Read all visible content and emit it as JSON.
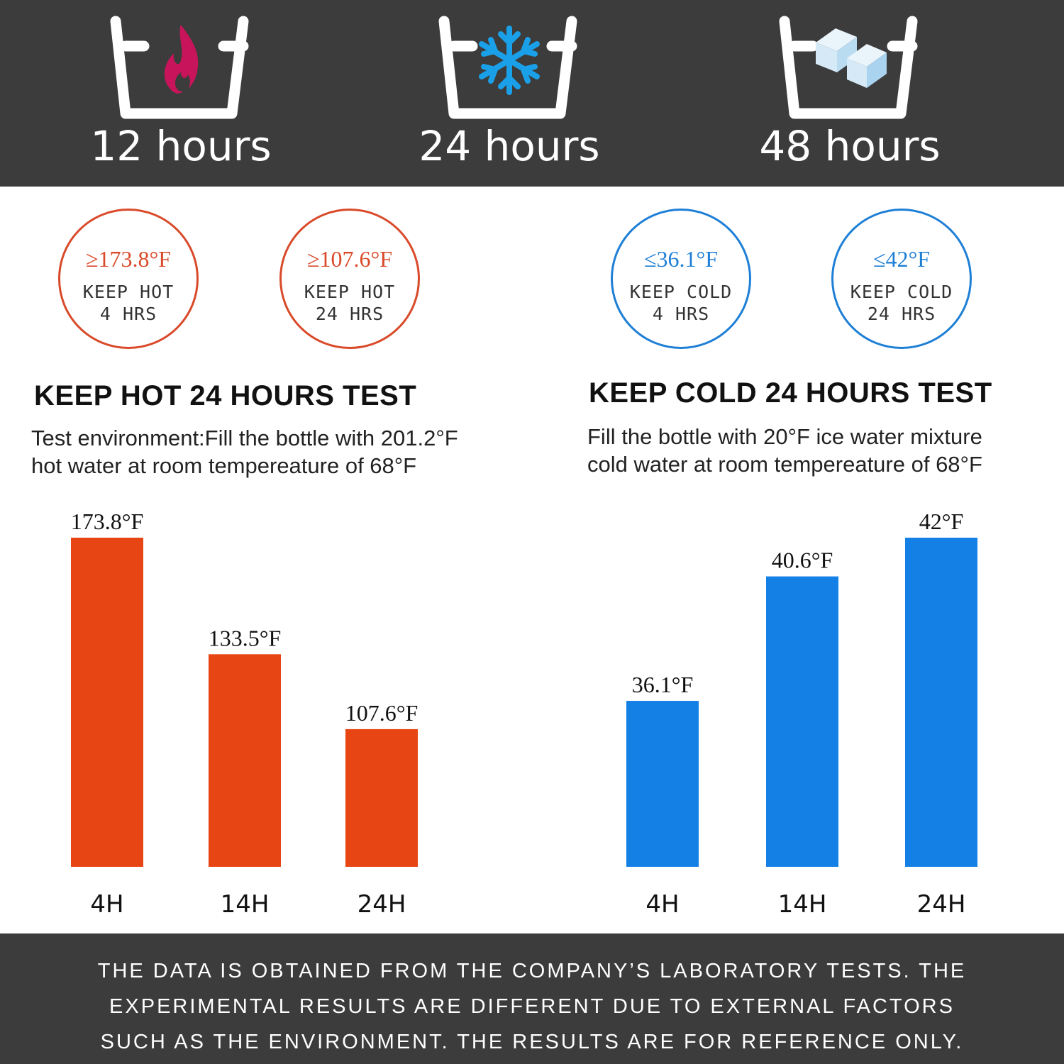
{
  "header": {
    "items": [
      {
        "icon": "flame-icon",
        "label": "12 hours",
        "color": "#c8145a"
      },
      {
        "icon": "snowflake-icon",
        "label": "24 hours",
        "color": "#1aa0e8"
      },
      {
        "icon": "ice-cubes-icon",
        "label": "48 hours",
        "color": "#cfe6f5"
      }
    ]
  },
  "badges": [
    {
      "temp": "≥173.8°F",
      "line1": "KEEP HOT",
      "line2": "4 HRS",
      "kind": "hot"
    },
    {
      "temp": "≥107.6°F",
      "line1": "KEEP HOT",
      "line2": "24 HRS",
      "kind": "hot"
    },
    {
      "temp": "≤36.1°F",
      "line1": "KEEP COLD",
      "line2": "4 HRS",
      "kind": "cold"
    },
    {
      "temp": "≤42°F",
      "line1": "KEEP COLD",
      "line2": "24 HRS",
      "kind": "cold"
    }
  ],
  "hot_section": {
    "title": "KEEP HOT 24 HOURS TEST",
    "desc_line1": "Test environment:Fill the bottle with 201.2°F",
    "desc_line2": "hot water at room tempereature of 68°F"
  },
  "cold_section": {
    "title": "KEEP COLD 24 HOURS TEST",
    "desc_line1": "Fill the bottle with 20°F ice water mixture",
    "desc_line2": "cold water at room tempereature of 68°F"
  },
  "chart_data": [
    {
      "type": "bar",
      "categories": [
        "4H",
        "14H",
        "24H"
      ],
      "values": [
        173.8,
        133.5,
        107.6
      ],
      "value_labels": [
        "173.8°F",
        "133.5°F",
        "107.6°F"
      ],
      "color": "#e84515",
      "title": "",
      "xlabel": "",
      "ylabel": "",
      "ylim": [
        60,
        173.8
      ],
      "grid": false
    },
    {
      "type": "bar",
      "categories": [
        "4H",
        "14H",
        "24H"
      ],
      "values": [
        36.1,
        40.6,
        42
      ],
      "value_labels": [
        "36.1°F",
        "40.6°F",
        "42°F"
      ],
      "color": "#1480e6",
      "title": "",
      "xlabel": "",
      "ylabel": "",
      "ylim": [
        30.1,
        42
      ],
      "grid": false
    }
  ],
  "footer": {
    "line1": "THE DATA IS OBTAINED FROM THE COMPANY’S LABORATORY TESTS. THE",
    "line2": "EXPERIMENTAL RESULTS ARE DIFFERENT DUE TO EXTERNAL FACTORS",
    "line3": "SUCH AS THE ENVIRONMENT. THE RESULTS ARE FOR REFERENCE ONLY."
  }
}
